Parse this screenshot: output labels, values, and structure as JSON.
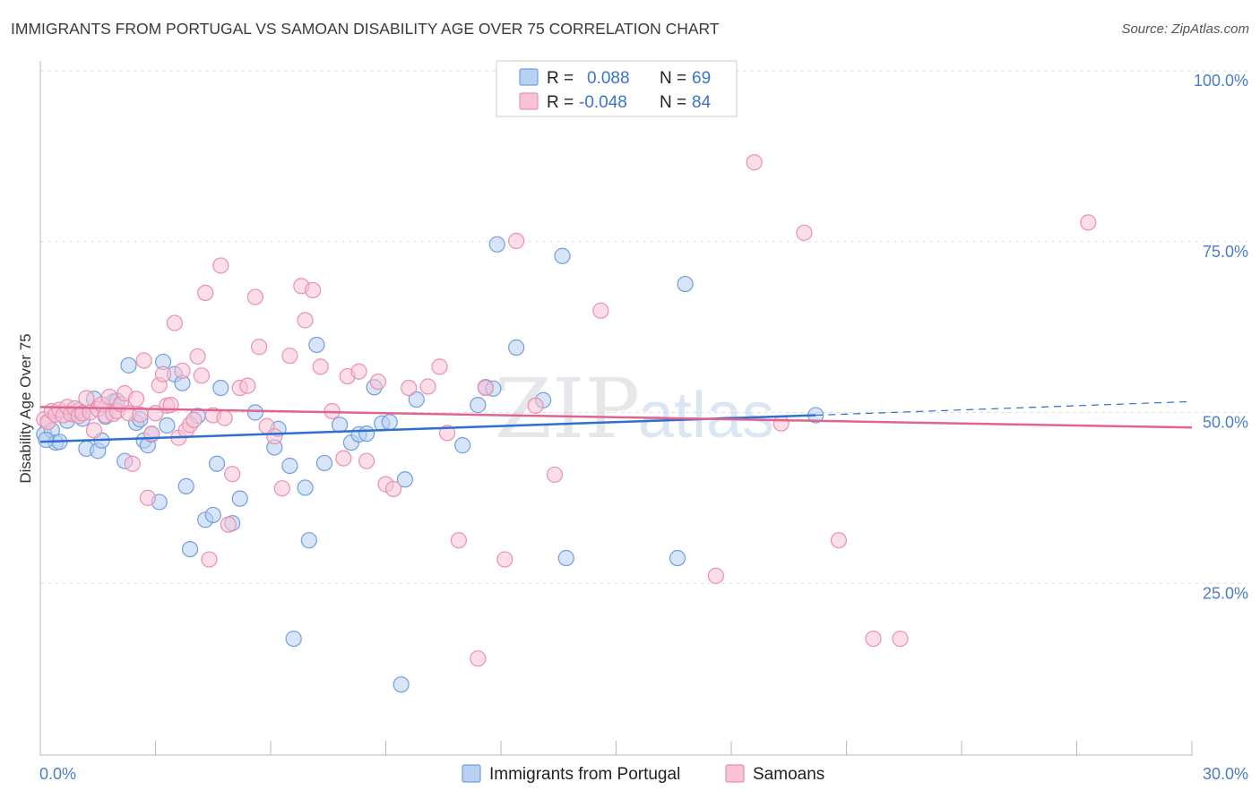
{
  "title": "IMMIGRANTS FROM PORTUGAL VS SAMOAN DISABILITY AGE OVER 75 CORRELATION CHART",
  "source": "Source: ZipAtlas.com",
  "watermark": {
    "zip": "ZIP",
    "atlas": "atlas"
  },
  "colors": {
    "blue": "#6f9fe0",
    "blue_fill": "#b8d0f2",
    "blue_line": "#2f6fd0",
    "pink": "#ec8fb0",
    "pink_fill": "#f7c3d5",
    "pink_line": "#e0648f",
    "tick": "#4a7cc9",
    "grid": "#dddddd"
  },
  "legend": {
    "rows": [
      {
        "r_label": "R =",
        "r_value": "0.088",
        "n_label": "N =",
        "n_value": "69",
        "color": "blue"
      },
      {
        "r_label": "R =",
        "r_value": "-0.048",
        "n_label": "N =",
        "n_value": "84",
        "color": "pink"
      }
    ]
  },
  "bottom_legend": [
    "Immigrants from Portugal",
    "Samoans"
  ],
  "chart_data": {
    "type": "scatter",
    "title": "IMMIGRANTS FROM PORTUGAL VS SAMOAN DISABILITY AGE OVER 75 CORRELATION CHART",
    "xlabel": "",
    "ylabel": "Disability Age Over 75",
    "xlim": [
      0,
      30
    ],
    "ylim": [
      0,
      105
    ],
    "x_tick_labels": [
      "0.0%",
      "30.0%"
    ],
    "y_ticks": [
      25,
      50,
      75,
      100
    ],
    "y_tick_labels": [
      "25.0%",
      "50.0%",
      "75.0%",
      "100.0%"
    ],
    "grid": true,
    "legend_position": "top-center",
    "series": [
      {
        "name": "Immigrants from Portugal",
        "color": "blue",
        "trend": {
          "x": [
            0,
            20.2
          ],
          "y": [
            45.7,
            49.6
          ],
          "dashed_to": [
            30,
            51.6
          ]
        },
        "points": [
          [
            0.1,
            46.8
          ],
          [
            0.2,
            48.7
          ],
          [
            0.3,
            47.4
          ],
          [
            0.4,
            45.6
          ],
          [
            0.5,
            45.7
          ],
          [
            0.7,
            48.8
          ],
          [
            0.9,
            49.7
          ],
          [
            1.0,
            50.3
          ],
          [
            1.1,
            49.1
          ],
          [
            1.2,
            44.7
          ],
          [
            1.4,
            52.0
          ],
          [
            1.5,
            44.4
          ],
          [
            1.6,
            45.9
          ],
          [
            1.7,
            49.4
          ],
          [
            1.9,
            51.6
          ],
          [
            2.0,
            51.7
          ],
          [
            2.2,
            42.9
          ],
          [
            2.3,
            56.9
          ],
          [
            2.5,
            48.5
          ],
          [
            2.6,
            49.0
          ],
          [
            2.7,
            45.9
          ],
          [
            2.8,
            45.2
          ],
          [
            2.9,
            46.8
          ],
          [
            3.1,
            36.9
          ],
          [
            3.2,
            57.4
          ],
          [
            3.3,
            48.1
          ],
          [
            3.5,
            55.6
          ],
          [
            3.7,
            54.3
          ],
          [
            3.8,
            39.2
          ],
          [
            3.9,
            30.0
          ],
          [
            4.1,
            49.5
          ],
          [
            4.3,
            34.3
          ],
          [
            4.5,
            35.0
          ],
          [
            4.6,
            42.5
          ],
          [
            4.7,
            53.6
          ],
          [
            5.0,
            33.8
          ],
          [
            5.2,
            37.4
          ],
          [
            5.6,
            50.0
          ],
          [
            6.1,
            44.9
          ],
          [
            6.2,
            47.6
          ],
          [
            6.5,
            42.2
          ],
          [
            6.6,
            16.9
          ],
          [
            6.9,
            39.0
          ],
          [
            7.0,
            31.3
          ],
          [
            7.2,
            59.9
          ],
          [
            7.4,
            42.6
          ],
          [
            7.8,
            48.2
          ],
          [
            8.1,
            45.6
          ],
          [
            8.3,
            46.8
          ],
          [
            8.5,
            46.9
          ],
          [
            8.7,
            53.7
          ],
          [
            8.9,
            48.4
          ],
          [
            9.1,
            48.6
          ],
          [
            9.4,
            10.2
          ],
          [
            9.5,
            40.2
          ],
          [
            9.8,
            51.9
          ],
          [
            11.0,
            45.2
          ],
          [
            11.4,
            51.1
          ],
          [
            11.6,
            53.7
          ],
          [
            11.8,
            53.5
          ],
          [
            11.9,
            74.6
          ],
          [
            12.4,
            59.5
          ],
          [
            13.1,
            51.8
          ],
          [
            13.6,
            72.9
          ],
          [
            13.7,
            28.7
          ],
          [
            16.6,
            28.7
          ],
          [
            16.8,
            68.8
          ],
          [
            20.2,
            49.6
          ],
          [
            0.15,
            46.0
          ]
        ]
      },
      {
        "name": "Samoans",
        "color": "pink",
        "trend": {
          "x": [
            0,
            30
          ],
          "y": [
            50.8,
            47.8
          ]
        },
        "points": [
          [
            0.1,
            49.0
          ],
          [
            0.2,
            48.6
          ],
          [
            0.3,
            50.2
          ],
          [
            0.4,
            49.7
          ],
          [
            0.5,
            50.4
          ],
          [
            0.6,
            49.6
          ],
          [
            0.7,
            50.8
          ],
          [
            0.8,
            49.8
          ],
          [
            0.9,
            50.6
          ],
          [
            1.0,
            49.5
          ],
          [
            1.1,
            49.9
          ],
          [
            1.2,
            52.1
          ],
          [
            1.3,
            50.0
          ],
          [
            1.4,
            47.4
          ],
          [
            1.5,
            50.5
          ],
          [
            1.6,
            51.2
          ],
          [
            1.7,
            49.6
          ],
          [
            1.8,
            52.3
          ],
          [
            1.9,
            49.8
          ],
          [
            2.0,
            50.2
          ],
          [
            2.1,
            51.2
          ],
          [
            2.2,
            52.8
          ],
          [
            2.3,
            49.9
          ],
          [
            2.4,
            42.5
          ],
          [
            2.5,
            52.0
          ],
          [
            2.6,
            49.7
          ],
          [
            2.7,
            57.6
          ],
          [
            2.8,
            37.5
          ],
          [
            2.9,
            46.9
          ],
          [
            3.0,
            49.9
          ],
          [
            3.1,
            54.0
          ],
          [
            3.2,
            55.6
          ],
          [
            3.3,
            51.0
          ],
          [
            3.4,
            51.1
          ],
          [
            3.5,
            63.1
          ],
          [
            3.6,
            46.3
          ],
          [
            3.7,
            56.1
          ],
          [
            3.8,
            47.4
          ],
          [
            3.9,
            48.2
          ],
          [
            4.0,
            48.9
          ],
          [
            4.1,
            58.2
          ],
          [
            4.2,
            55.4
          ],
          [
            4.3,
            67.5
          ],
          [
            4.4,
            28.5
          ],
          [
            4.5,
            49.6
          ],
          [
            4.7,
            71.5
          ],
          [
            4.8,
            49.2
          ],
          [
            4.9,
            33.6
          ],
          [
            5.0,
            41.0
          ],
          [
            5.2,
            53.6
          ],
          [
            5.4,
            53.9
          ],
          [
            5.6,
            66.9
          ],
          [
            5.7,
            59.6
          ],
          [
            5.9,
            48.0
          ],
          [
            6.1,
            46.5
          ],
          [
            6.3,
            38.9
          ],
          [
            6.5,
            58.3
          ],
          [
            6.8,
            68.5
          ],
          [
            6.9,
            63.5
          ],
          [
            7.1,
            67.9
          ],
          [
            7.3,
            56.7
          ],
          [
            7.6,
            50.2
          ],
          [
            7.9,
            43.3
          ],
          [
            8.0,
            55.3
          ],
          [
            8.3,
            56.0
          ],
          [
            8.5,
            42.9
          ],
          [
            8.8,
            54.5
          ],
          [
            9.0,
            39.5
          ],
          [
            9.2,
            38.8
          ],
          [
            9.6,
            53.6
          ],
          [
            10.1,
            53.8
          ],
          [
            10.4,
            56.7
          ],
          [
            10.6,
            47.0
          ],
          [
            10.9,
            31.3
          ],
          [
            11.4,
            14.0
          ],
          [
            11.6,
            53.6
          ],
          [
            12.1,
            28.5
          ],
          [
            12.4,
            75.1
          ],
          [
            12.9,
            51.0
          ],
          [
            13.4,
            40.9
          ],
          [
            14.6,
            64.9
          ],
          [
            17.6,
            26.1
          ],
          [
            18.6,
            86.6
          ],
          [
            20.8,
            31.3
          ]
        ]
      }
    ]
  },
  "extra_pink_points": [
    [
      19.3,
      48.4
    ],
    [
      19.9,
      76.3
    ],
    [
      21.7,
      16.9
    ],
    [
      22.4,
      16.9
    ],
    [
      27.3,
      77.8
    ]
  ]
}
